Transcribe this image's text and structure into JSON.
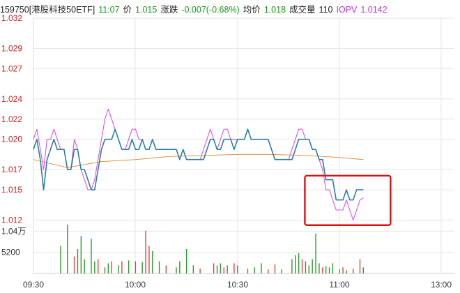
{
  "header": {
    "code_name": "159750[港股科技50ETF]",
    "time": "11:07",
    "price_label": "价",
    "price": "1.015",
    "change_label": "涨跌",
    "change": "-0.007(-0.68%)",
    "avg_label": "均价",
    "avg": "1.018",
    "volume_label": "成交量",
    "volume": "110",
    "iopv_label": "IOPV",
    "iopv": "1.0142"
  },
  "chart_data": {
    "type": "line",
    "title": "",
    "x_ticks": [
      "09:30",
      "10:00",
      "10:30",
      "11:00",
      "13:00"
    ],
    "y_ticks": [
      "1.032",
      "1.029",
      "1.027",
      "1.024",
      "1.022",
      "1.020",
      "1.017",
      "1.015",
      "1.012"
    ],
    "ylim": [
      1.011,
      1.032
    ],
    "volume_ticks": [
      "1.04万",
      "5200"
    ],
    "volume_max": 12000,
    "annotation": "red rectangle highlighting price drop after 10:50",
    "colors": {
      "price": "#2a7ea8",
      "iopv": "#d855e8",
      "avg": "#e89040",
      "up": "#e04040",
      "down": "#2a9a2a",
      "highlight": "#e01010",
      "grid": "#e6e6e6"
    },
    "series": [
      {
        "name": "价",
        "x": [
          "09:30",
          "09:31",
          "09:32",
          "09:33",
          "09:34",
          "09:35",
          "09:36",
          "09:37",
          "09:38",
          "09:39",
          "09:40",
          "09:41",
          "09:42",
          "09:43",
          "09:44",
          "09:45",
          "09:46",
          "09:47",
          "09:48",
          "09:49",
          "09:50",
          "09:51",
          "09:52",
          "09:53",
          "09:54",
          "09:55",
          "09:56",
          "09:57",
          "09:58",
          "09:59",
          "10:00",
          "10:01",
          "10:02",
          "10:03",
          "10:04",
          "10:05",
          "10:06",
          "10:07",
          "10:08",
          "10:09",
          "10:10",
          "10:11",
          "10:12",
          "10:13",
          "10:14",
          "10:15",
          "10:16",
          "10:17",
          "10:18",
          "10:19",
          "10:20",
          "10:21",
          "10:22",
          "10:23",
          "10:24",
          "10:25",
          "10:26",
          "10:27",
          "10:28",
          "10:29",
          "10:30",
          "10:31",
          "10:32",
          "10:33",
          "10:34",
          "10:35",
          "10:36",
          "10:37",
          "10:38",
          "10:39",
          "10:40",
          "10:41",
          "10:42",
          "10:43",
          "10:44",
          "10:45",
          "10:46",
          "10:47",
          "10:48",
          "10:49",
          "10:50",
          "10:51",
          "10:52",
          "10:53",
          "10:54",
          "10:55",
          "10:56",
          "10:57",
          "10:58",
          "10:59",
          "11:00",
          "11:01",
          "11:02",
          "11:03",
          "11:04",
          "11:05",
          "11:06",
          "11:07"
        ],
        "values": [
          1.019,
          1.02,
          1.018,
          1.015,
          1.018,
          1.019,
          1.02,
          1.019,
          1.019,
          1.019,
          1.017,
          1.017,
          1.019,
          1.019,
          1.017,
          1.017,
          1.016,
          1.015,
          1.015,
          1.017,
          1.019,
          1.02,
          1.02,
          1.02,
          1.021,
          1.02,
          1.019,
          1.019,
          1.019,
          1.02,
          1.019,
          1.019,
          1.02,
          1.019,
          1.019,
          1.02,
          1.019,
          1.019,
          1.019,
          1.019,
          1.019,
          1.019,
          1.019,
          1.018,
          1.019,
          1.018,
          1.018,
          1.018,
          1.018,
          1.018,
          1.018,
          1.019,
          1.02,
          1.02,
          1.019,
          1.019,
          1.02,
          1.02,
          1.02,
          1.019,
          1.02,
          1.02,
          1.02,
          1.021,
          1.02,
          1.02,
          1.02,
          1.02,
          1.02,
          1.02,
          1.019,
          1.018,
          1.018,
          1.018,
          1.018,
          1.018,
          1.018,
          1.019,
          1.02,
          1.02,
          1.02,
          1.02,
          1.019,
          1.019,
          1.018,
          1.018,
          1.016,
          1.016,
          1.016,
          1.014,
          1.014,
          1.014,
          1.015,
          1.014,
          1.014,
          1.015,
          1.015,
          1.015
        ]
      },
      {
        "name": "IOPV",
        "x": [
          "09:30",
          "09:31",
          "09:32",
          "09:33",
          "09:34",
          "09:35",
          "09:36",
          "09:37",
          "09:38",
          "09:39",
          "09:40",
          "09:41",
          "09:42",
          "09:43",
          "09:44",
          "09:45",
          "09:46",
          "09:47",
          "09:48",
          "09:49",
          "09:50",
          "09:51",
          "09:52",
          "09:53",
          "09:54",
          "09:55",
          "09:56",
          "09:57",
          "09:58",
          "09:59",
          "10:00",
          "10:01",
          "10:02",
          "10:03",
          "10:04",
          "10:05",
          "10:06",
          "10:07",
          "10:08",
          "10:09",
          "10:10",
          "10:11",
          "10:12",
          "10:13",
          "10:14",
          "10:15",
          "10:16",
          "10:17",
          "10:18",
          "10:19",
          "10:20",
          "10:21",
          "10:22",
          "10:23",
          "10:24",
          "10:25",
          "10:26",
          "10:27",
          "10:28",
          "10:29",
          "10:30",
          "10:31",
          "10:32",
          "10:33",
          "10:34",
          "10:35",
          "10:36",
          "10:37",
          "10:38",
          "10:39",
          "10:40",
          "10:41",
          "10:42",
          "10:43",
          "10:44",
          "10:45",
          "10:46",
          "10:47",
          "10:48",
          "10:49",
          "10:50",
          "10:51",
          "10:52",
          "10:53",
          "10:54",
          "10:55",
          "10:56",
          "10:57",
          "10:58",
          "10:59",
          "11:00",
          "11:01",
          "11:02",
          "11:03",
          "11:04",
          "11:05",
          "11:06",
          "11:07"
        ],
        "values": [
          1.02,
          1.021,
          1.019,
          1.017,
          1.02,
          1.02,
          1.021,
          1.02,
          1.019,
          1.019,
          1.017,
          1.017,
          1.02,
          1.019,
          1.017,
          1.016,
          1.015,
          1.015,
          1.016,
          1.018,
          1.02,
          1.022,
          1.023,
          1.022,
          1.021,
          1.02,
          1.019,
          1.019,
          1.02,
          1.021,
          1.021,
          1.02,
          1.02,
          1.019,
          1.019,
          1.02,
          1.019,
          1.019,
          1.019,
          1.019,
          1.019,
          1.019,
          1.019,
          1.018,
          1.019,
          1.018,
          1.018,
          1.018,
          1.018,
          1.018,
          1.019,
          1.02,
          1.021,
          1.02,
          1.019,
          1.02,
          1.021,
          1.021,
          1.02,
          1.02,
          1.02,
          1.02,
          1.02,
          1.021,
          1.02,
          1.02,
          1.02,
          1.02,
          1.02,
          1.02,
          1.019,
          1.018,
          1.018,
          1.018,
          1.018,
          1.018,
          1.019,
          1.02,
          1.021,
          1.021,
          1.02,
          1.02,
          1.019,
          1.019,
          1.018,
          1.017,
          1.015,
          1.015,
          1.014,
          1.013,
          1.013,
          1.013,
          1.014,
          1.013,
          1.012,
          1.013,
          1.014,
          1.0142
        ]
      },
      {
        "name": "均价",
        "x": [
          "09:30",
          "09:40",
          "09:50",
          "10:00",
          "10:10",
          "10:20",
          "10:30",
          "10:40",
          "10:50",
          "11:00",
          "11:07"
        ],
        "values": [
          1.018,
          1.0172,
          1.0178,
          1.018,
          1.0183,
          1.0184,
          1.0185,
          1.0185,
          1.0184,
          1.0182,
          1.018
        ]
      }
    ],
    "volumes": [
      {
        "x": "09:38",
        "value": 6800,
        "dir": "down"
      },
      {
        "x": "09:40",
        "value": 12000,
        "dir": "down"
      },
      {
        "x": "09:42",
        "value": 4200,
        "dir": "up"
      },
      {
        "x": "09:43",
        "value": 6000,
        "dir": "down"
      },
      {
        "x": "09:44",
        "value": 9200,
        "dir": "down"
      },
      {
        "x": "09:45",
        "value": 3500,
        "dir": "down"
      },
      {
        "x": "09:47",
        "value": 8500,
        "dir": "down"
      },
      {
        "x": "09:48",
        "value": 3000,
        "dir": "down"
      },
      {
        "x": "09:49",
        "value": 3500,
        "dir": "up"
      },
      {
        "x": "09:51",
        "value": 1500,
        "dir": "down"
      },
      {
        "x": "09:52",
        "value": 2500,
        "dir": "down"
      },
      {
        "x": "09:53",
        "value": 3000,
        "dir": "up"
      },
      {
        "x": "09:55",
        "value": 2000,
        "dir": "down"
      },
      {
        "x": "09:56",
        "value": 3000,
        "dir": "up"
      },
      {
        "x": "09:58",
        "value": 3200,
        "dir": "down"
      },
      {
        "x": "10:00",
        "value": 3000,
        "dir": "up"
      },
      {
        "x": "10:02",
        "value": 2800,
        "dir": "down"
      },
      {
        "x": "10:03",
        "value": 10500,
        "dir": "up"
      },
      {
        "x": "10:04",
        "value": 6800,
        "dir": "up"
      },
      {
        "x": "10:05",
        "value": 5500,
        "dir": "down"
      },
      {
        "x": "10:07",
        "value": 3000,
        "dir": "down"
      },
      {
        "x": "10:09",
        "value": 2000,
        "dir": "up"
      },
      {
        "x": "10:12",
        "value": 1500,
        "dir": "down"
      },
      {
        "x": "10:13",
        "value": 3000,
        "dir": "down"
      },
      {
        "x": "10:15",
        "value": 6000,
        "dir": "down"
      },
      {
        "x": "10:17",
        "value": 2000,
        "dir": "down"
      },
      {
        "x": "10:19",
        "value": 1200,
        "dir": "up"
      },
      {
        "x": "10:23",
        "value": 2500,
        "dir": "up"
      },
      {
        "x": "10:24",
        "value": 2000,
        "dir": "down"
      },
      {
        "x": "10:25",
        "value": 2500,
        "dir": "down"
      },
      {
        "x": "10:26",
        "value": 1500,
        "dir": "up"
      },
      {
        "x": "10:27",
        "value": 2000,
        "dir": "down"
      },
      {
        "x": "10:29",
        "value": 2500,
        "dir": "up"
      },
      {
        "x": "10:30",
        "value": 2000,
        "dir": "down"
      },
      {
        "x": "10:33",
        "value": 1200,
        "dir": "up"
      },
      {
        "x": "10:35",
        "value": 1500,
        "dir": "down"
      },
      {
        "x": "10:37",
        "value": 2500,
        "dir": "down"
      },
      {
        "x": "10:39",
        "value": 1000,
        "dir": "up"
      },
      {
        "x": "10:41",
        "value": 2200,
        "dir": "up"
      },
      {
        "x": "10:43",
        "value": 1000,
        "dir": "down"
      },
      {
        "x": "10:46",
        "value": 3500,
        "dir": "down"
      },
      {
        "x": "10:47",
        "value": 4500,
        "dir": "down"
      },
      {
        "x": "10:48",
        "value": 5000,
        "dir": "down"
      },
      {
        "x": "10:49",
        "value": 3500,
        "dir": "up"
      },
      {
        "x": "10:50",
        "value": 3000,
        "dir": "down"
      },
      {
        "x": "10:51",
        "value": 2000,
        "dir": "down"
      },
      {
        "x": "10:52",
        "value": 3500,
        "dir": "down"
      },
      {
        "x": "10:53",
        "value": 9800,
        "dir": "down"
      },
      {
        "x": "10:54",
        "value": 2500,
        "dir": "down"
      },
      {
        "x": "10:55",
        "value": 1500,
        "dir": "up"
      },
      {
        "x": "10:56",
        "value": 1800,
        "dir": "down"
      },
      {
        "x": "10:57",
        "value": 1500,
        "dir": "down"
      },
      {
        "x": "10:58",
        "value": 2500,
        "dir": "down"
      },
      {
        "x": "11:00",
        "value": 1000,
        "dir": "down"
      },
      {
        "x": "11:01",
        "value": 1500,
        "dir": "up"
      },
      {
        "x": "11:02",
        "value": 800,
        "dir": "down"
      },
      {
        "x": "11:04",
        "value": 1200,
        "dir": "up"
      },
      {
        "x": "11:06",
        "value": 3500,
        "dir": "up"
      },
      {
        "x": "11:07",
        "value": 1500,
        "dir": "down"
      }
    ]
  }
}
